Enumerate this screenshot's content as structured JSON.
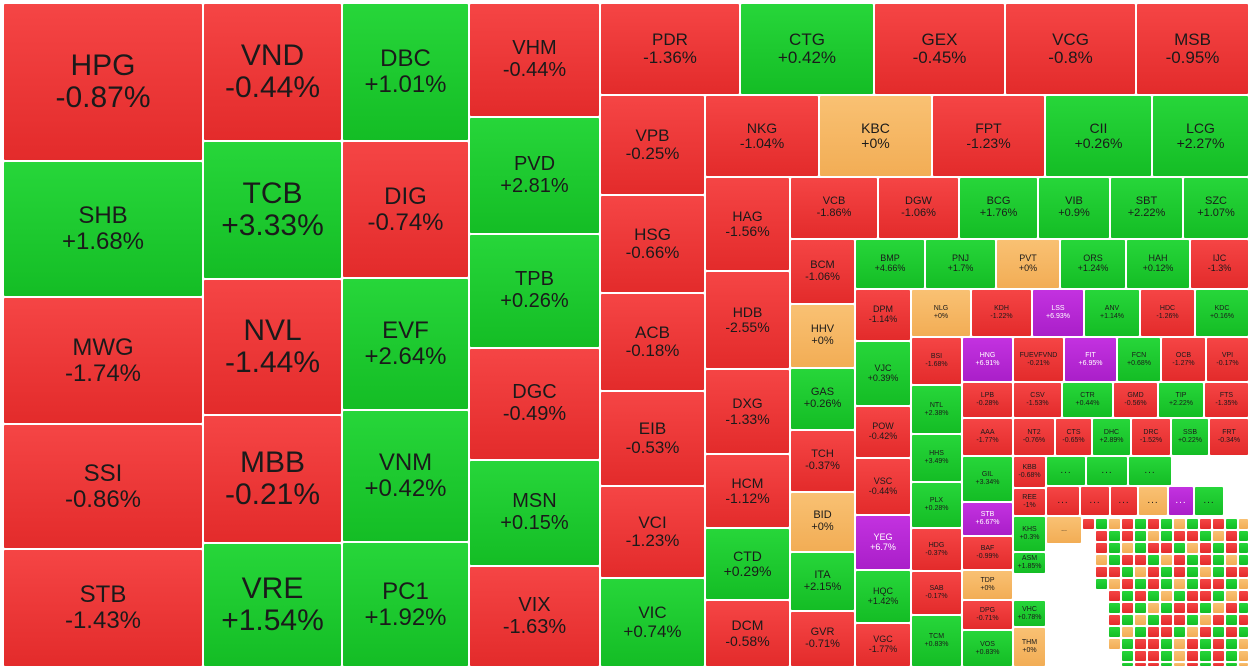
{
  "colors": {
    "down": "#e32b2b",
    "up": "#14bd25",
    "unchanged": "#f2ad55",
    "ceiling": "#aa1fc9"
  },
  "tiles": [
    {
      "symbol": "HPG",
      "change": "-0.87%",
      "status": "down"
    },
    {
      "symbol": "SHB",
      "change": "+1.68%",
      "status": "up"
    },
    {
      "symbol": "MWG",
      "change": "-1.74%",
      "status": "down"
    },
    {
      "symbol": "SSI",
      "change": "-0.86%",
      "status": "down"
    },
    {
      "symbol": "STB",
      "change": "-1.43%",
      "status": "down"
    },
    {
      "symbol": "VND",
      "change": "-0.44%",
      "status": "down"
    },
    {
      "symbol": "TCB",
      "change": "+3.33%",
      "status": "up"
    },
    {
      "symbol": "NVL",
      "change": "-1.44%",
      "status": "down"
    },
    {
      "symbol": "MBB",
      "change": "-0.21%",
      "status": "down"
    },
    {
      "symbol": "VRE",
      "change": "+1.54%",
      "status": "up"
    },
    {
      "symbol": "DBC",
      "change": "+1.01%",
      "status": "up"
    },
    {
      "symbol": "DIG",
      "change": "-0.74%",
      "status": "down"
    },
    {
      "symbol": "EVF",
      "change": "+2.64%",
      "status": "up"
    },
    {
      "symbol": "VNM",
      "change": "+0.42%",
      "status": "up"
    },
    {
      "symbol": "PC1",
      "change": "+1.92%",
      "status": "up"
    },
    {
      "symbol": "VHM",
      "change": "-0.44%",
      "status": "down"
    },
    {
      "symbol": "PVD",
      "change": "+2.81%",
      "status": "up"
    },
    {
      "symbol": "TPB",
      "change": "+0.26%",
      "status": "up"
    },
    {
      "symbol": "DGC",
      "change": "-0.49%",
      "status": "down"
    },
    {
      "symbol": "MSN",
      "change": "+0.15%",
      "status": "up"
    },
    {
      "symbol": "VIX",
      "change": "-1.63%",
      "status": "down"
    },
    {
      "symbol": "PDR",
      "change": "-1.36%",
      "status": "down"
    },
    {
      "symbol": "CTG",
      "change": "+0.42%",
      "status": "up"
    },
    {
      "symbol": "GEX",
      "change": "-0.45%",
      "status": "down"
    },
    {
      "symbol": "VCG",
      "change": "-0.8%",
      "status": "down"
    },
    {
      "symbol": "MSB",
      "change": "-0.95%",
      "status": "down"
    },
    {
      "symbol": "VPB",
      "change": "-0.25%",
      "status": "down"
    },
    {
      "symbol": "HSG",
      "change": "-0.66%",
      "status": "down"
    },
    {
      "symbol": "ACB",
      "change": "-0.18%",
      "status": "down"
    },
    {
      "symbol": "EIB",
      "change": "-0.53%",
      "status": "down"
    },
    {
      "symbol": "VCI",
      "change": "-1.23%",
      "status": "down"
    },
    {
      "symbol": "VIC",
      "change": "+0.74%",
      "status": "up"
    },
    {
      "symbol": "NKG",
      "change": "-1.04%",
      "status": "down"
    },
    {
      "symbol": "KBC",
      "change": "+0%",
      "status": "unchanged"
    },
    {
      "symbol": "FPT",
      "change": "-1.23%",
      "status": "down"
    },
    {
      "symbol": "CII",
      "change": "+0.26%",
      "status": "up"
    },
    {
      "symbol": "LCG",
      "change": "+2.27%",
      "status": "up"
    },
    {
      "symbol": "HAG",
      "change": "-1.56%",
      "status": "down"
    },
    {
      "symbol": "HDB",
      "change": "-2.55%",
      "status": "down"
    },
    {
      "symbol": "DXG",
      "change": "-1.33%",
      "status": "down"
    },
    {
      "symbol": "HCM",
      "change": "-1.12%",
      "status": "down"
    },
    {
      "symbol": "CTD",
      "change": "+0.29%",
      "status": "up"
    },
    {
      "symbol": "DCM",
      "change": "-0.58%",
      "status": "down"
    },
    {
      "symbol": "VCB",
      "change": "-1.86%",
      "status": "down"
    },
    {
      "symbol": "DGW",
      "change": "-1.06%",
      "status": "down"
    },
    {
      "symbol": "BCG",
      "change": "+1.76%",
      "status": "up"
    },
    {
      "symbol": "VIB",
      "change": "+0.9%",
      "status": "up"
    },
    {
      "symbol": "SBT",
      "change": "+2.22%",
      "status": "up"
    },
    {
      "symbol": "SZC",
      "change": "+1.07%",
      "status": "up"
    },
    {
      "symbol": "BCM",
      "change": "-1.06%",
      "status": "down"
    },
    {
      "symbol": "HHV",
      "change": "+0%",
      "status": "unchanged"
    },
    {
      "symbol": "GAS",
      "change": "+0.26%",
      "status": "up"
    },
    {
      "symbol": "TCH",
      "change": "-0.37%",
      "status": "down"
    },
    {
      "symbol": "BID",
      "change": "+0%",
      "status": "unchanged"
    },
    {
      "symbol": "ITA",
      "change": "+2.15%",
      "status": "up"
    },
    {
      "symbol": "GVR",
      "change": "-0.71%",
      "status": "down"
    },
    {
      "symbol": "BMP",
      "change": "+4.66%",
      "status": "up"
    },
    {
      "symbol": "PNJ",
      "change": "+1.7%",
      "status": "up"
    },
    {
      "symbol": "PVT",
      "change": "+0%",
      "status": "unchanged"
    },
    {
      "symbol": "ORS",
      "change": "+1.24%",
      "status": "up"
    },
    {
      "symbol": "HAH",
      "change": "+0.12%",
      "status": "up"
    },
    {
      "symbol": "IJC",
      "change": "-1.3%",
      "status": "down"
    },
    {
      "symbol": "DPM",
      "change": "-1.14%",
      "status": "down"
    },
    {
      "symbol": "VJC",
      "change": "+0.39%",
      "status": "up"
    },
    {
      "symbol": "POW",
      "change": "-0.42%",
      "status": "down"
    },
    {
      "symbol": "VSC",
      "change": "-0.44%",
      "status": "down"
    },
    {
      "symbol": "YEG",
      "change": "+6.7%",
      "status": "ceiling"
    },
    {
      "symbol": "HQC",
      "change": "+1.42%",
      "status": "up"
    },
    {
      "symbol": "VGC",
      "change": "-1.77%",
      "status": "down"
    },
    {
      "symbol": "NLG",
      "change": "+0%",
      "status": "unchanged"
    },
    {
      "symbol": "KDH",
      "change": "-1.22%",
      "status": "down"
    },
    {
      "symbol": "LSS",
      "change": "+6.93%",
      "status": "ceiling"
    },
    {
      "symbol": "ANV",
      "change": "+1.14%",
      "status": "up"
    },
    {
      "symbol": "HDC",
      "change": "-1.26%",
      "status": "down"
    },
    {
      "symbol": "KDC",
      "change": "+0.16%",
      "status": "up"
    },
    {
      "symbol": "BSI",
      "change": "-1.68%",
      "status": "down"
    },
    {
      "symbol": "NTL",
      "change": "+2.38%",
      "status": "up"
    },
    {
      "symbol": "HHS",
      "change": "+3.49%",
      "status": "up"
    },
    {
      "symbol": "PLX",
      "change": "+0.28%",
      "status": "up"
    },
    {
      "symbol": "HDG",
      "change": "-0.37%",
      "status": "down"
    },
    {
      "symbol": "SAB",
      "change": "-0.17%",
      "status": "down"
    },
    {
      "symbol": "TCM",
      "change": "+0.83%",
      "status": "up"
    },
    {
      "symbol": "HNG",
      "change": "+6.91%",
      "status": "ceiling"
    },
    {
      "symbol": "FUEVFVND",
      "change": "-0.21%",
      "status": "down"
    },
    {
      "symbol": "FIT",
      "change": "+6.95%",
      "status": "ceiling"
    },
    {
      "symbol": "FCN",
      "change": "+0.68%",
      "status": "up"
    },
    {
      "symbol": "OCB",
      "change": "-1.27%",
      "status": "down"
    },
    {
      "symbol": "VPI",
      "change": "-0.17%",
      "status": "down"
    },
    {
      "symbol": "LPB",
      "change": "-0.28%",
      "status": "down"
    },
    {
      "symbol": "CSV",
      "change": "-1.53%",
      "status": "down"
    },
    {
      "symbol": "CTR",
      "change": "+0.44%",
      "status": "up"
    },
    {
      "symbol": "GMD",
      "change": "-0.56%",
      "status": "down"
    },
    {
      "symbol": "TIP",
      "change": "+2.22%",
      "status": "up"
    },
    {
      "symbol": "FTS",
      "change": "-1.35%",
      "status": "down"
    },
    {
      "symbol": "AAA",
      "change": "-1.77%",
      "status": "down"
    },
    {
      "symbol": "NT2",
      "change": "-0.76%",
      "status": "down"
    },
    {
      "symbol": "CTS",
      "change": "-0.65%",
      "status": "down"
    },
    {
      "symbol": "DHC",
      "change": "+2.89%",
      "status": "up"
    },
    {
      "symbol": "DRC",
      "change": "-1.52%",
      "status": "down"
    },
    {
      "symbol": "SSB",
      "change": "+0.22%",
      "status": "up"
    },
    {
      "symbol": "FRT",
      "change": "-0.34%",
      "status": "down"
    },
    {
      "symbol": "GIL",
      "change": "+3.34%",
      "status": "up"
    },
    {
      "symbol": "KBB",
      "change": "-0.68%",
      "status": "down"
    },
    {
      "symbol": "REE",
      "change": "-1%",
      "status": "down"
    },
    {
      "symbol": "STB",
      "change": "+6.67%",
      "status": "ceiling"
    },
    {
      "symbol": "BAF",
      "change": "-0.99%",
      "status": "down"
    },
    {
      "symbol": "KHS",
      "change": "+0.3%",
      "status": "up"
    },
    {
      "symbol": "TDP",
      "change": "+0%",
      "status": "unchanged"
    },
    {
      "symbol": "ASM",
      "change": "+1.85%",
      "status": "up"
    },
    {
      "symbol": "DPG",
      "change": "-0.71%",
      "status": "down"
    },
    {
      "symbol": "VHC",
      "change": "+0.78%",
      "status": "up"
    },
    {
      "symbol": "VOS",
      "change": "+0.83%",
      "status": "up"
    },
    {
      "symbol": "THM",
      "change": "+0%",
      "status": "unchanged"
    },
    {
      "symbol": "...",
      "change": "",
      "status": "unchanged"
    },
    {
      "symbol": "...",
      "change": "",
      "status": "up"
    },
    {
      "symbol": "...",
      "change": "",
      "status": "up"
    },
    {
      "symbol": "...",
      "change": "",
      "status": "up"
    },
    {
      "symbol": "...",
      "change": "",
      "status": "down"
    },
    {
      "symbol": "...",
      "change": "",
      "status": "down"
    },
    {
      "symbol": "...",
      "change": "",
      "status": "down"
    },
    {
      "symbol": "...",
      "change": "",
      "status": "unchanged"
    },
    {
      "symbol": "...",
      "change": "",
      "status": "ceiling"
    },
    {
      "symbol": "...",
      "change": "",
      "status": "up"
    }
  ]
}
